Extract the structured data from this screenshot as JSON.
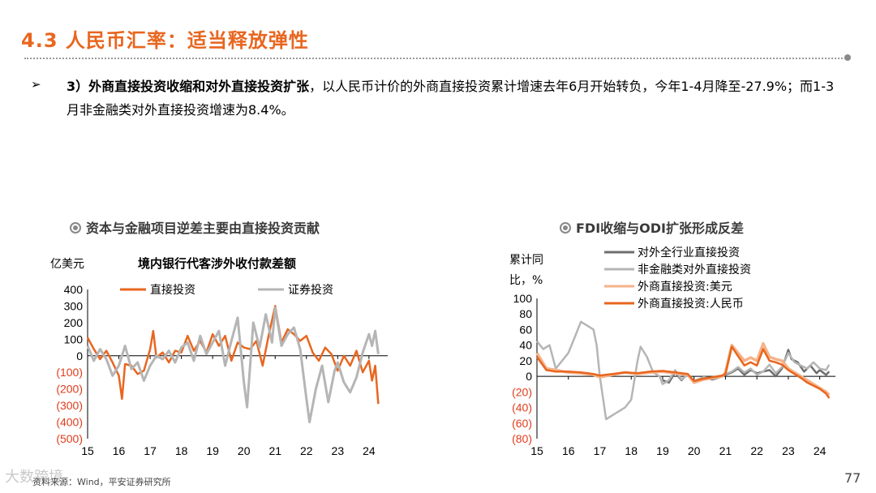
{
  "header": {
    "title": "4.3 人民币汇率：适当释放弹性"
  },
  "bullet": {
    "marker": "➢",
    "bold_text": "3）外商直接投资收缩和对外直接投资扩张",
    "rest_text": "，以人民币计价的外商直接投资累计增速去年6月开始转负，今年1-4月降至-27.9%；而1-3月非金融类对外直接投资增速为8.4%。"
  },
  "chart1": {
    "header": "资本与金融项目逆差主要由直接投资贡献",
    "unit": "亿美元",
    "title": "境内银行代客涉外收付款差额"
  },
  "chart2": {
    "header": "FDI收缩与ODI扩张形成反差",
    "unit_line1": "累计同",
    "unit_line2": "比，%"
  },
  "footer": {
    "source": "资料来源：Wind，平安证券研究所",
    "page": "77",
    "watermark": "大数跨境"
  },
  "colors": {
    "accent": "#E8661F",
    "fdi_usd": "#F5B389",
    "odi_all": "#6E6E6E",
    "odi_nonfin": "#B5B5B5",
    "negative_tick": "#E03C1C"
  },
  "chart_data": [
    {
      "type": "line",
      "title": "境内银行代客涉外收付款差额",
      "ylabel": "亿美元",
      "ylim": [
        -500,
        400
      ],
      "yticks": [
        400,
        300,
        200,
        100,
        0,
        -100,
        -200,
        -300,
        -400,
        -500
      ],
      "ytick_labels": [
        "400",
        "300",
        "200",
        "100",
        "0",
        "(100)",
        "(200)",
        "(300)",
        "(400)",
        "(500)"
      ],
      "xlim": [
        15,
        24.6
      ],
      "xticks": [
        15,
        16,
        17,
        18,
        19,
        20,
        21,
        22,
        23,
        24
      ],
      "xtick_labels": [
        "15",
        "16",
        "17",
        "18",
        "19",
        "20",
        "21",
        "22",
        "23",
        "24"
      ],
      "legend": "top",
      "series": [
        {
          "name": "直接投资",
          "color": "#E8661F",
          "x": [
            15,
            15.2,
            15.4,
            15.6,
            15.8,
            16.0,
            16.1,
            16.2,
            16.4,
            16.6,
            16.8,
            17.0,
            17.1,
            17.2,
            17.4,
            17.6,
            17.8,
            18.0,
            18.2,
            18.4,
            18.6,
            18.8,
            19.0,
            19.2,
            19.4,
            19.6,
            19.8,
            20.0,
            20.2,
            20.4,
            20.6,
            20.8,
            21.0,
            21.2,
            21.4,
            21.6,
            21.8,
            22.0,
            22.2,
            22.4,
            22.6,
            22.8,
            23.0,
            23.2,
            23.4,
            23.6,
            23.8,
            24.0,
            24.1,
            24.2,
            24.3
          ],
          "values": [
            110,
            40,
            -20,
            30,
            -40,
            -120,
            -260,
            -50,
            -60,
            -110,
            -90,
            40,
            150,
            -10,
            20,
            -40,
            30,
            20,
            120,
            30,
            90,
            20,
            130,
            60,
            120,
            -30,
            80,
            50,
            40,
            90,
            -60,
            130,
            300,
            80,
            160,
            130,
            90,
            120,
            20,
            -30,
            50,
            10,
            -90,
            0,
            -60,
            30,
            -100,
            -30,
            -150,
            -60,
            -290
          ]
        },
        {
          "name": "证券投资",
          "color": "#B5B5B5",
          "x": [
            15,
            15.2,
            15.4,
            15.6,
            15.8,
            16.0,
            16.2,
            16.4,
            16.6,
            16.8,
            17.0,
            17.2,
            17.4,
            17.6,
            17.8,
            18.0,
            18.2,
            18.4,
            18.6,
            18.8,
            19.0,
            19.2,
            19.4,
            19.6,
            19.8,
            20.0,
            20.1,
            20.3,
            20.5,
            20.7,
            20.9,
            21.0,
            21.2,
            21.4,
            21.6,
            21.8,
            22.0,
            22.1,
            22.3,
            22.5,
            22.7,
            22.9,
            23.0,
            23.2,
            23.4,
            23.6,
            23.8,
            24.0,
            24.1,
            24.2,
            24.3
          ],
          "values": [
            60,
            -30,
            40,
            -20,
            -120,
            -60,
            60,
            -80,
            -40,
            -150,
            -60,
            0,
            -20,
            30,
            -40,
            50,
            80,
            -30,
            120,
            10,
            80,
            150,
            -60,
            90,
            230,
            -160,
            -310,
            200,
            50,
            250,
            80,
            290,
            60,
            130,
            170,
            40,
            -260,
            -400,
            -200,
            -60,
            -280,
            -90,
            -40,
            -160,
            -220,
            -130,
            20,
            130,
            60,
            150,
            10
          ]
        }
      ]
    },
    {
      "type": "line",
      "ylabel": "累计同比，%",
      "ylim": [
        -80,
        100
      ],
      "yticks": [
        100,
        80,
        60,
        40,
        20,
        0,
        -20,
        -40,
        -60,
        -80
      ],
      "ytick_labels": [
        "100",
        "80",
        "60",
        "40",
        "20",
        "0",
        "(20)",
        "(40)",
        "(60)",
        "(80)"
      ],
      "xlim": [
        15,
        24.5
      ],
      "xticks": [
        15,
        16,
        17,
        18,
        19,
        20,
        21,
        22,
        23,
        24
      ],
      "xtick_labels": [
        "15",
        "16",
        "17",
        "18",
        "19",
        "20",
        "21",
        "22",
        "23",
        "24"
      ],
      "legend": "top",
      "series": [
        {
          "name": "对外全行业直接投资",
          "color": "#6E6E6E",
          "x": [
            19.0,
            19.2,
            19.4,
            19.6,
            19.8,
            20.0,
            20.3,
            20.6,
            20.9,
            21.0,
            21.2,
            21.4,
            21.6,
            21.8,
            22.0,
            22.2,
            22.4,
            22.6,
            22.8,
            23.0,
            23.1,
            23.3,
            23.5,
            23.7,
            23.9,
            24.0,
            24.2,
            24.3
          ],
          "values": [
            -5,
            -8,
            5,
            -5,
            3,
            -8,
            -2,
            -4,
            0,
            2,
            5,
            10,
            2,
            8,
            4,
            6,
            8,
            0,
            10,
            34,
            22,
            18,
            6,
            14,
            4,
            8,
            2,
            6
          ]
        },
        {
          "name": "非金融类对外直接投资",
          "color": "#B5B5B5",
          "x": [
            15.0,
            15.2,
            15.4,
            15.6,
            15.8,
            16.0,
            16.2,
            16.4,
            16.6,
            16.8,
            16.9,
            17.0,
            17.2,
            17.4,
            17.6,
            17.8,
            18.0,
            18.2,
            18.3,
            18.5,
            18.7,
            18.9,
            19.0,
            19.2,
            19.4,
            19.6,
            19.8,
            20.0,
            20.3,
            20.6,
            20.9,
            21.0,
            21.2,
            21.4,
            21.6,
            21.8,
            22.0,
            22.2,
            22.4,
            22.6,
            22.8,
            23.0,
            23.2,
            23.4,
            23.6,
            23.8,
            24.0,
            24.2,
            24.3
          ],
          "values": [
            45,
            35,
            40,
            10,
            20,
            30,
            50,
            70,
            65,
            60,
            40,
            0,
            -55,
            -50,
            -45,
            -40,
            -30,
            20,
            38,
            25,
            5,
            0,
            -10,
            -5,
            8,
            -4,
            2,
            -6,
            -1,
            -3,
            0,
            3,
            6,
            12,
            5,
            10,
            2,
            6,
            15,
            4,
            12,
            30,
            18,
            14,
            10,
            18,
            10,
            8,
            15
          ]
        },
        {
          "name": "外商直接投资:美元",
          "color": "#F5B389",
          "x": [
            15.0,
            15.3,
            15.6,
            16.0,
            16.4,
            16.8,
            17.0,
            17.4,
            17.8,
            18.2,
            18.6,
            19.0,
            19.4,
            19.8,
            20.0,
            20.3,
            20.6,
            20.9,
            21.0,
            21.2,
            21.4,
            21.6,
            21.8,
            22.0,
            22.2,
            22.4,
            22.6,
            22.8,
            23.0,
            23.2,
            23.4,
            23.6,
            23.8,
            24.0,
            24.2,
            24.3
          ],
          "values": [
            30,
            10,
            8,
            5,
            4,
            2,
            -1,
            2,
            5,
            3,
            5,
            6,
            4,
            2,
            -8,
            -4,
            -2,
            0,
            5,
            40,
            30,
            20,
            24,
            20,
            42,
            25,
            22,
            20,
            10,
            5,
            0,
            -5,
            -10,
            -15,
            -20,
            -24
          ]
        },
        {
          "name": "外商直接投资:人民币",
          "color": "#E8661F",
          "x": [
            15.0,
            15.3,
            15.6,
            16.0,
            16.4,
            16.8,
            17.0,
            17.4,
            17.8,
            18.2,
            18.6,
            19.0,
            19.4,
            19.8,
            20.0,
            20.3,
            20.6,
            20.9,
            21.0,
            21.2,
            21.4,
            21.6,
            21.8,
            22.0,
            22.2,
            22.4,
            22.6,
            22.8,
            23.0,
            23.2,
            23.4,
            23.6,
            23.8,
            24.0,
            24.2,
            24.3
          ],
          "values": [
            25,
            8,
            6,
            6,
            5,
            3,
            1,
            3,
            5,
            4,
            6,
            7,
            5,
            3,
            -6,
            -3,
            -1,
            1,
            3,
            38,
            26,
            14,
            18,
            14,
            35,
            20,
            18,
            15,
            8,
            3,
            -2,
            -8,
            -12,
            -16,
            -22,
            -28
          ]
        }
      ]
    }
  ]
}
